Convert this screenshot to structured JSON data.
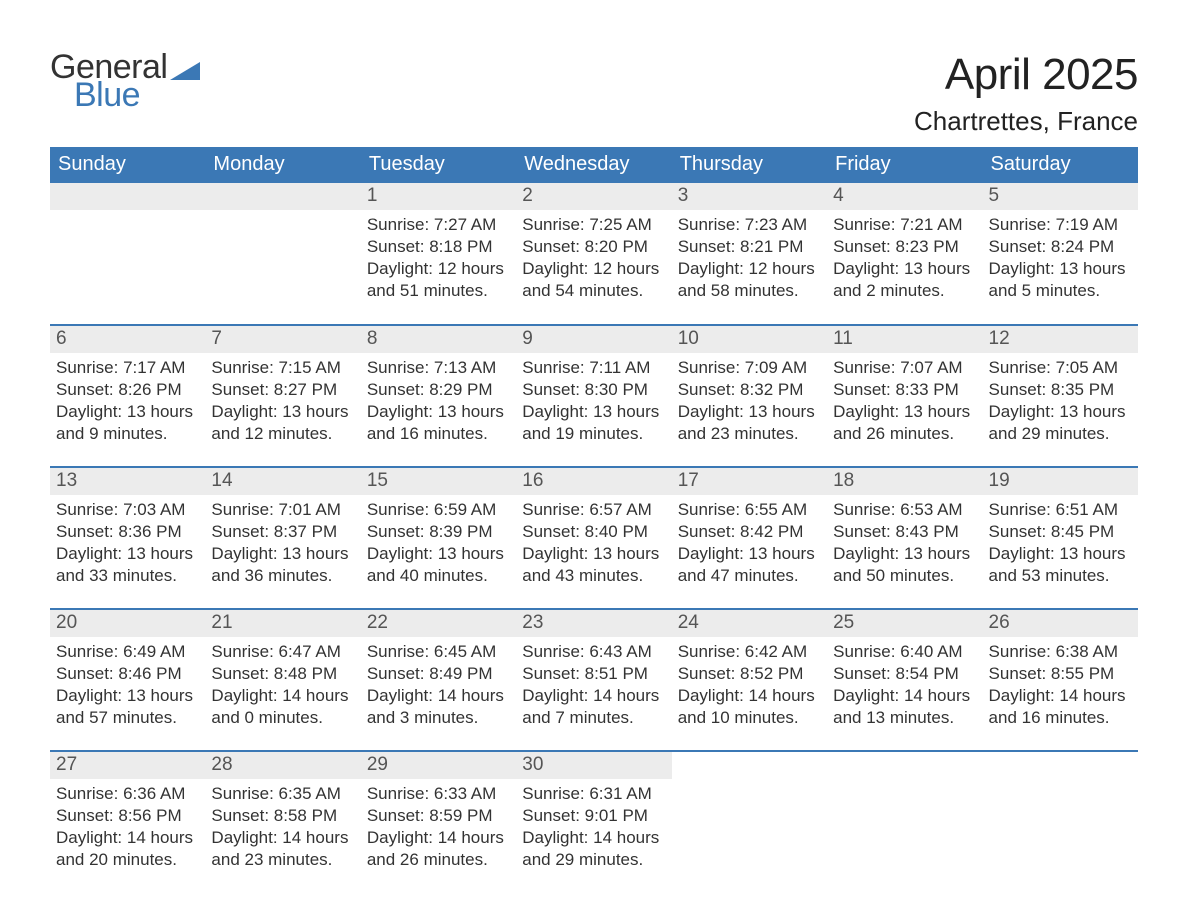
{
  "logo": {
    "line1": "General",
    "line2": "Blue",
    "color_text": "#333333",
    "color_blue": "#3b78b5"
  },
  "title": {
    "month": "April 2025",
    "location": "Chartrettes, France"
  },
  "colors": {
    "header_bg": "#3b78b5",
    "header_text": "#ffffff",
    "daynum_bg": "#ececec",
    "daynum_text": "#555555",
    "body_text": "#333333",
    "row_border": "#3b78b5",
    "page_bg": "#ffffff"
  },
  "typography": {
    "month_fontsize": 44,
    "location_fontsize": 26,
    "weekday_fontsize": 20,
    "daynum_fontsize": 19,
    "body_fontsize": 17,
    "logo_fontsize": 34
  },
  "calendar": {
    "type": "table",
    "weekdays": [
      "Sunday",
      "Monday",
      "Tuesday",
      "Wednesday",
      "Thursday",
      "Friday",
      "Saturday"
    ],
    "first_weekday_index": 2,
    "days": {
      "1": {
        "sunrise": "7:27 AM",
        "sunset": "8:18 PM",
        "daylight": "12 hours and 51 minutes."
      },
      "2": {
        "sunrise": "7:25 AM",
        "sunset": "8:20 PM",
        "daylight": "12 hours and 54 minutes."
      },
      "3": {
        "sunrise": "7:23 AM",
        "sunset": "8:21 PM",
        "daylight": "12 hours and 58 minutes."
      },
      "4": {
        "sunrise": "7:21 AM",
        "sunset": "8:23 PM",
        "daylight": "13 hours and 2 minutes."
      },
      "5": {
        "sunrise": "7:19 AM",
        "sunset": "8:24 PM",
        "daylight": "13 hours and 5 minutes."
      },
      "6": {
        "sunrise": "7:17 AM",
        "sunset": "8:26 PM",
        "daylight": "13 hours and 9 minutes."
      },
      "7": {
        "sunrise": "7:15 AM",
        "sunset": "8:27 PM",
        "daylight": "13 hours and 12 minutes."
      },
      "8": {
        "sunrise": "7:13 AM",
        "sunset": "8:29 PM",
        "daylight": "13 hours and 16 minutes."
      },
      "9": {
        "sunrise": "7:11 AM",
        "sunset": "8:30 PM",
        "daylight": "13 hours and 19 minutes."
      },
      "10": {
        "sunrise": "7:09 AM",
        "sunset": "8:32 PM",
        "daylight": "13 hours and 23 minutes."
      },
      "11": {
        "sunrise": "7:07 AM",
        "sunset": "8:33 PM",
        "daylight": "13 hours and 26 minutes."
      },
      "12": {
        "sunrise": "7:05 AM",
        "sunset": "8:35 PM",
        "daylight": "13 hours and 29 minutes."
      },
      "13": {
        "sunrise": "7:03 AM",
        "sunset": "8:36 PM",
        "daylight": "13 hours and 33 minutes."
      },
      "14": {
        "sunrise": "7:01 AM",
        "sunset": "8:37 PM",
        "daylight": "13 hours and 36 minutes."
      },
      "15": {
        "sunrise": "6:59 AM",
        "sunset": "8:39 PM",
        "daylight": "13 hours and 40 minutes."
      },
      "16": {
        "sunrise": "6:57 AM",
        "sunset": "8:40 PM",
        "daylight": "13 hours and 43 minutes."
      },
      "17": {
        "sunrise": "6:55 AM",
        "sunset": "8:42 PM",
        "daylight": "13 hours and 47 minutes."
      },
      "18": {
        "sunrise": "6:53 AM",
        "sunset": "8:43 PM",
        "daylight": "13 hours and 50 minutes."
      },
      "19": {
        "sunrise": "6:51 AM",
        "sunset": "8:45 PM",
        "daylight": "13 hours and 53 minutes."
      },
      "20": {
        "sunrise": "6:49 AM",
        "sunset": "8:46 PM",
        "daylight": "13 hours and 57 minutes."
      },
      "21": {
        "sunrise": "6:47 AM",
        "sunset": "8:48 PM",
        "daylight": "14 hours and 0 minutes."
      },
      "22": {
        "sunrise": "6:45 AM",
        "sunset": "8:49 PM",
        "daylight": "14 hours and 3 minutes."
      },
      "23": {
        "sunrise": "6:43 AM",
        "sunset": "8:51 PM",
        "daylight": "14 hours and 7 minutes."
      },
      "24": {
        "sunrise": "6:42 AM",
        "sunset": "8:52 PM",
        "daylight": "14 hours and 10 minutes."
      },
      "25": {
        "sunrise": "6:40 AM",
        "sunset": "8:54 PM",
        "daylight": "14 hours and 13 minutes."
      },
      "26": {
        "sunrise": "6:38 AM",
        "sunset": "8:55 PM",
        "daylight": "14 hours and 16 minutes."
      },
      "27": {
        "sunrise": "6:36 AM",
        "sunset": "8:56 PM",
        "daylight": "14 hours and 20 minutes."
      },
      "28": {
        "sunrise": "6:35 AM",
        "sunset": "8:58 PM",
        "daylight": "14 hours and 23 minutes."
      },
      "29": {
        "sunrise": "6:33 AM",
        "sunset": "8:59 PM",
        "daylight": "14 hours and 26 minutes."
      },
      "30": {
        "sunrise": "6:31 AM",
        "sunset": "9:01 PM",
        "daylight": "14 hours and 29 minutes."
      }
    },
    "labels": {
      "sunrise": "Sunrise:",
      "sunset": "Sunset:",
      "daylight": "Daylight:"
    }
  }
}
